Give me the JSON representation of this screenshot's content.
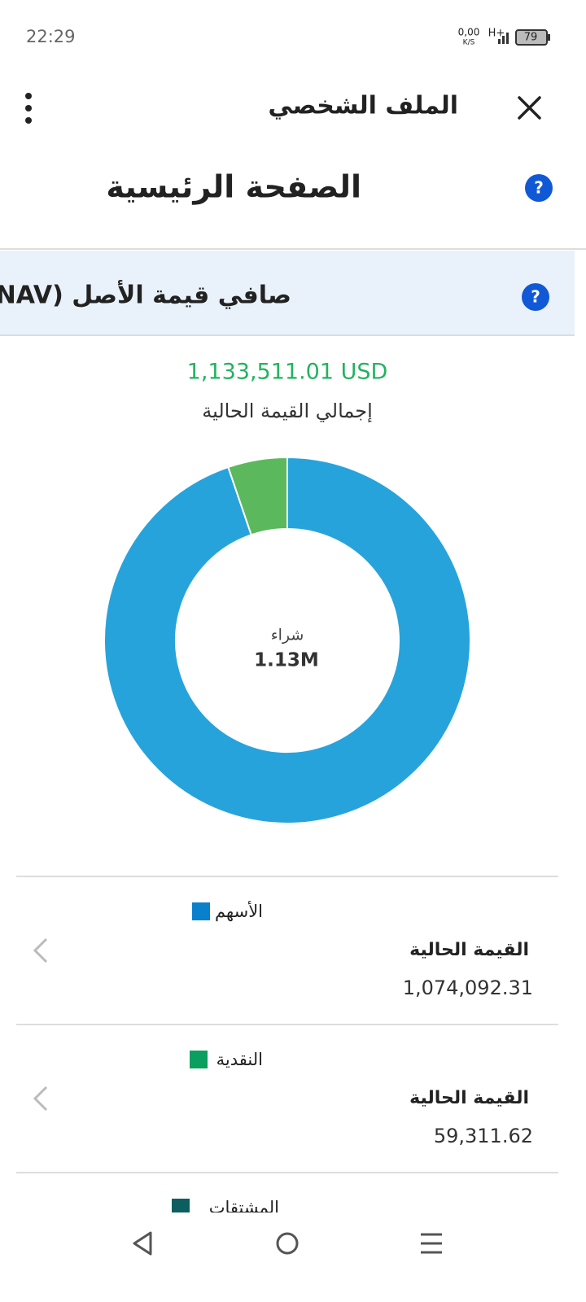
{
  "status_bar": {
    "time": "22:29",
    "network_speed": "0,00",
    "speed_unit": "K/S",
    "network": "H+",
    "battery": "79"
  },
  "header": {
    "title": "الملف الشخصي"
  },
  "page": {
    "title": "الصفحة الرئيسية",
    "help_icon": "?"
  },
  "section": {
    "title": "صافي قيمة الأصل (NAV)",
    "total": "1,133,511.01 USD",
    "total_caption": "إجمالي القيمة الحالية"
  },
  "chart_data": {
    "type": "pie",
    "categories": [
      "الأسهم",
      "النقدية"
    ],
    "values": [
      1074092.31,
      59311.62
    ],
    "value_labels": [
      "1,074,092.31",
      "59,311.62"
    ],
    "colors": [
      "#27a3dc",
      "#5cb85c"
    ],
    "center_label": "شراء",
    "center_value": "1.13M"
  },
  "list": {
    "value_caption": "القيمة الحالية",
    "legend_colors": [
      "#0a7fcc",
      "#0a9f5f",
      "#0d5e5e"
    ],
    "extra_item": "المشتقات"
  }
}
